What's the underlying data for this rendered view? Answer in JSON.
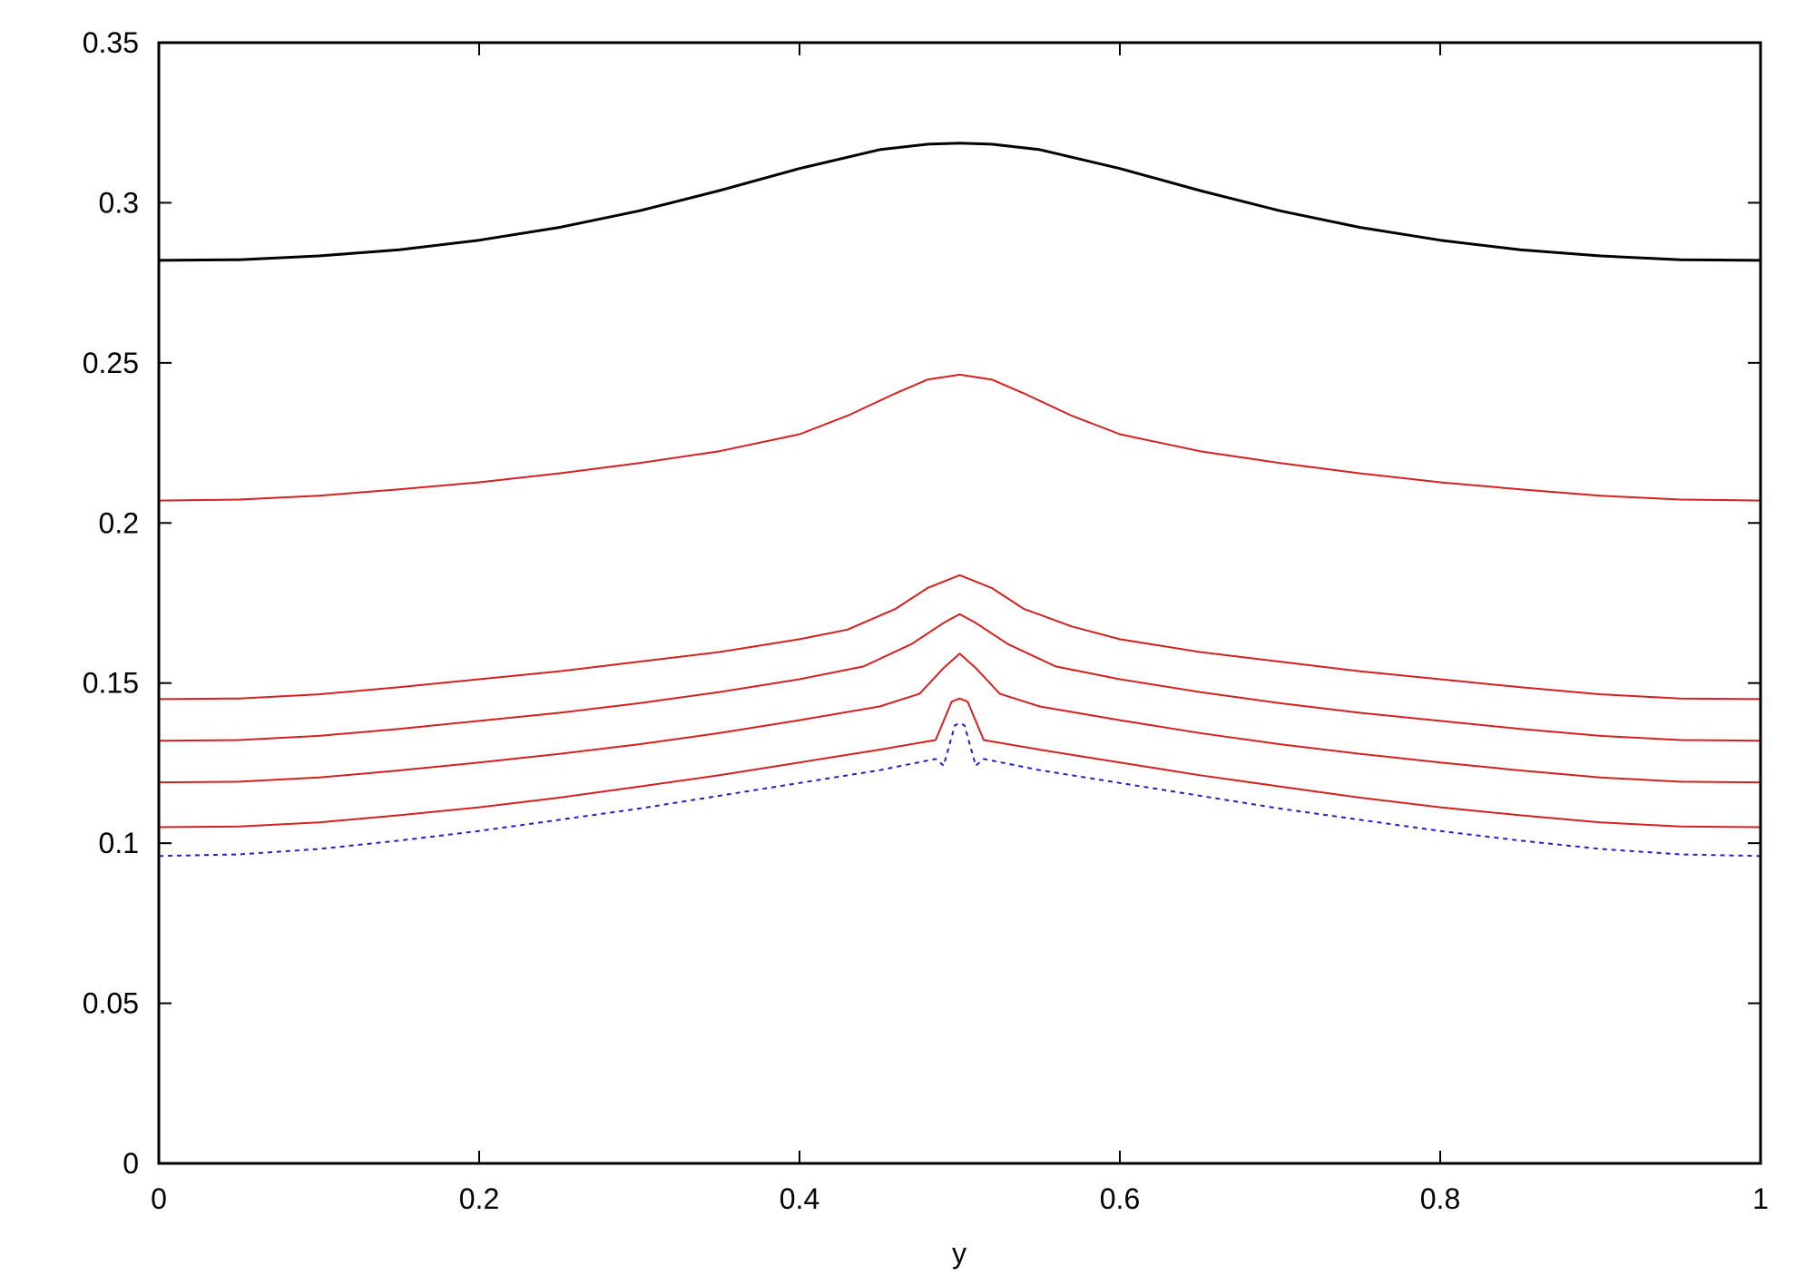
{
  "chart_data": {
    "type": "line",
    "title": "",
    "xlabel": "y",
    "ylabel": "",
    "xlim": [
      0,
      1
    ],
    "ylim": [
      0,
      0.35
    ],
    "x_ticks": [
      0,
      0.2,
      0.4,
      0.6,
      0.8,
      1
    ],
    "x_tick_labels": [
      "0",
      "0.2",
      "0.4",
      "0.6",
      "0.8",
      "1"
    ],
    "y_ticks": [
      0,
      0.05,
      0.1,
      0.15,
      0.2,
      0.25,
      0.3,
      0.35
    ],
    "y_tick_labels": [
      "0",
      "0.05",
      "0.1",
      "0.15",
      "0.2",
      "0.25",
      "0.3",
      "0.35"
    ],
    "grid": false,
    "legend": "none",
    "series": [
      {
        "color": "#000000",
        "style": "solid",
        "x": [
          0,
          0.05,
          0.1,
          0.15,
          0.2,
          0.25,
          0.3,
          0.35,
          0.4,
          0.45,
          0.48,
          0.5,
          0.52,
          0.55,
          0.6,
          0.65,
          0.7,
          0.75,
          0.8,
          0.85,
          0.9,
          0.95,
          1
        ],
        "values": [
          0.282,
          0.2822,
          0.2834,
          0.2853,
          0.2883,
          0.2923,
          0.2975,
          0.3038,
          0.3107,
          0.3166,
          0.3183,
          0.3186,
          0.3183,
          0.3166,
          0.3107,
          0.3038,
          0.2975,
          0.2923,
          0.2883,
          0.2853,
          0.2834,
          0.2822,
          0.282
        ]
      },
      {
        "color": "#d42020",
        "style": "solid",
        "x": [
          0,
          0.05,
          0.1,
          0.15,
          0.2,
          0.25,
          0.3,
          0.35,
          0.4,
          0.43,
          0.46,
          0.48,
          0.5,
          0.52,
          0.54,
          0.57,
          0.6,
          0.65,
          0.7,
          0.75,
          0.8,
          0.85,
          0.9,
          0.95,
          1
        ],
        "values": [
          0.207,
          0.2073,
          0.2085,
          0.2105,
          0.2127,
          0.2155,
          0.2187,
          0.2224,
          0.2277,
          0.2335,
          0.2405,
          0.2448,
          0.2463,
          0.2448,
          0.2405,
          0.2335,
          0.2277,
          0.2224,
          0.2187,
          0.2155,
          0.2127,
          0.2105,
          0.2085,
          0.2073,
          0.207
        ]
      },
      {
        "color": "#d42020",
        "style": "solid",
        "x": [
          0,
          0.05,
          0.1,
          0.15,
          0.2,
          0.25,
          0.3,
          0.35,
          0.4,
          0.43,
          0.46,
          0.48,
          0.5,
          0.52,
          0.54,
          0.57,
          0.6,
          0.65,
          0.7,
          0.75,
          0.8,
          0.85,
          0.9,
          0.95,
          1
        ],
        "values": [
          0.145,
          0.1452,
          0.1465,
          0.1487,
          0.1512,
          0.1537,
          0.1567,
          0.1597,
          0.1637,
          0.1667,
          0.1732,
          0.1797,
          0.1837,
          0.1797,
          0.1732,
          0.1677,
          0.1637,
          0.1597,
          0.1567,
          0.1537,
          0.1512,
          0.1487,
          0.1465,
          0.1452,
          0.145
        ]
      },
      {
        "color": "#d42020",
        "style": "solid",
        "x": [
          0,
          0.05,
          0.1,
          0.15,
          0.2,
          0.25,
          0.3,
          0.35,
          0.4,
          0.44,
          0.47,
          0.49,
          0.5,
          0.51,
          0.53,
          0.56,
          0.6,
          0.65,
          0.7,
          0.75,
          0.8,
          0.85,
          0.9,
          0.95,
          1
        ],
        "values": [
          0.132,
          0.1322,
          0.1335,
          0.1357,
          0.1382,
          0.1407,
          0.1437,
          0.1472,
          0.1512,
          0.1552,
          0.1622,
          0.1688,
          0.1715,
          0.1688,
          0.1622,
          0.1552,
          0.1512,
          0.1472,
          0.1437,
          0.1407,
          0.1382,
          0.1357,
          0.1335,
          0.1322,
          0.132
        ]
      },
      {
        "color": "#d42020",
        "style": "solid",
        "x": [
          0,
          0.05,
          0.1,
          0.15,
          0.2,
          0.25,
          0.3,
          0.35,
          0.4,
          0.45,
          0.475,
          0.49,
          0.5,
          0.51,
          0.525,
          0.55,
          0.6,
          0.65,
          0.7,
          0.75,
          0.8,
          0.85,
          0.9,
          0.95,
          1
        ],
        "values": [
          0.119,
          0.1192,
          0.1205,
          0.1227,
          0.1252,
          0.1279,
          0.1309,
          0.1344,
          0.1384,
          0.1427,
          0.1467,
          0.1547,
          0.1592,
          0.1547,
          0.1467,
          0.1427,
          0.1384,
          0.1344,
          0.1309,
          0.1279,
          0.1252,
          0.1227,
          0.1205,
          0.1192,
          0.119
        ]
      },
      {
        "color": "#d42020",
        "style": "solid",
        "x": [
          0,
          0.05,
          0.1,
          0.15,
          0.2,
          0.25,
          0.3,
          0.35,
          0.4,
          0.45,
          0.485,
          0.495,
          0.5,
          0.505,
          0.515,
          0.55,
          0.6,
          0.65,
          0.7,
          0.75,
          0.8,
          0.85,
          0.9,
          0.95,
          1
        ],
        "values": [
          0.105,
          0.1052,
          0.1065,
          0.1087,
          0.1112,
          0.1142,
          0.1177,
          0.1212,
          0.1252,
          0.1292,
          0.1322,
          0.1442,
          0.1452,
          0.1442,
          0.1322,
          0.1292,
          0.1252,
          0.1212,
          0.1177,
          0.1142,
          0.1112,
          0.1087,
          0.1065,
          0.1052,
          0.105
        ]
      },
      {
        "color": "#2020c8",
        "style": "dotted",
        "x": [
          0,
          0.05,
          0.1,
          0.15,
          0.2,
          0.25,
          0.3,
          0.35,
          0.4,
          0.45,
          0.485,
          0.49,
          0.497,
          0.5,
          0.503,
          0.51,
          0.515,
          0.55,
          0.6,
          0.65,
          0.7,
          0.75,
          0.8,
          0.85,
          0.9,
          0.95,
          1
        ],
        "values": [
          0.096,
          0.0965,
          0.0982,
          0.1008,
          0.1038,
          0.1073,
          0.1108,
          0.1148,
          0.1188,
          0.1228,
          0.1263,
          0.1242,
          0.1368,
          0.1375,
          0.1368,
          0.1242,
          0.1263,
          0.1228,
          0.1188,
          0.1148,
          0.1108,
          0.1073,
          0.1038,
          0.1008,
          0.0982,
          0.0965,
          0.096
        ]
      }
    ]
  }
}
